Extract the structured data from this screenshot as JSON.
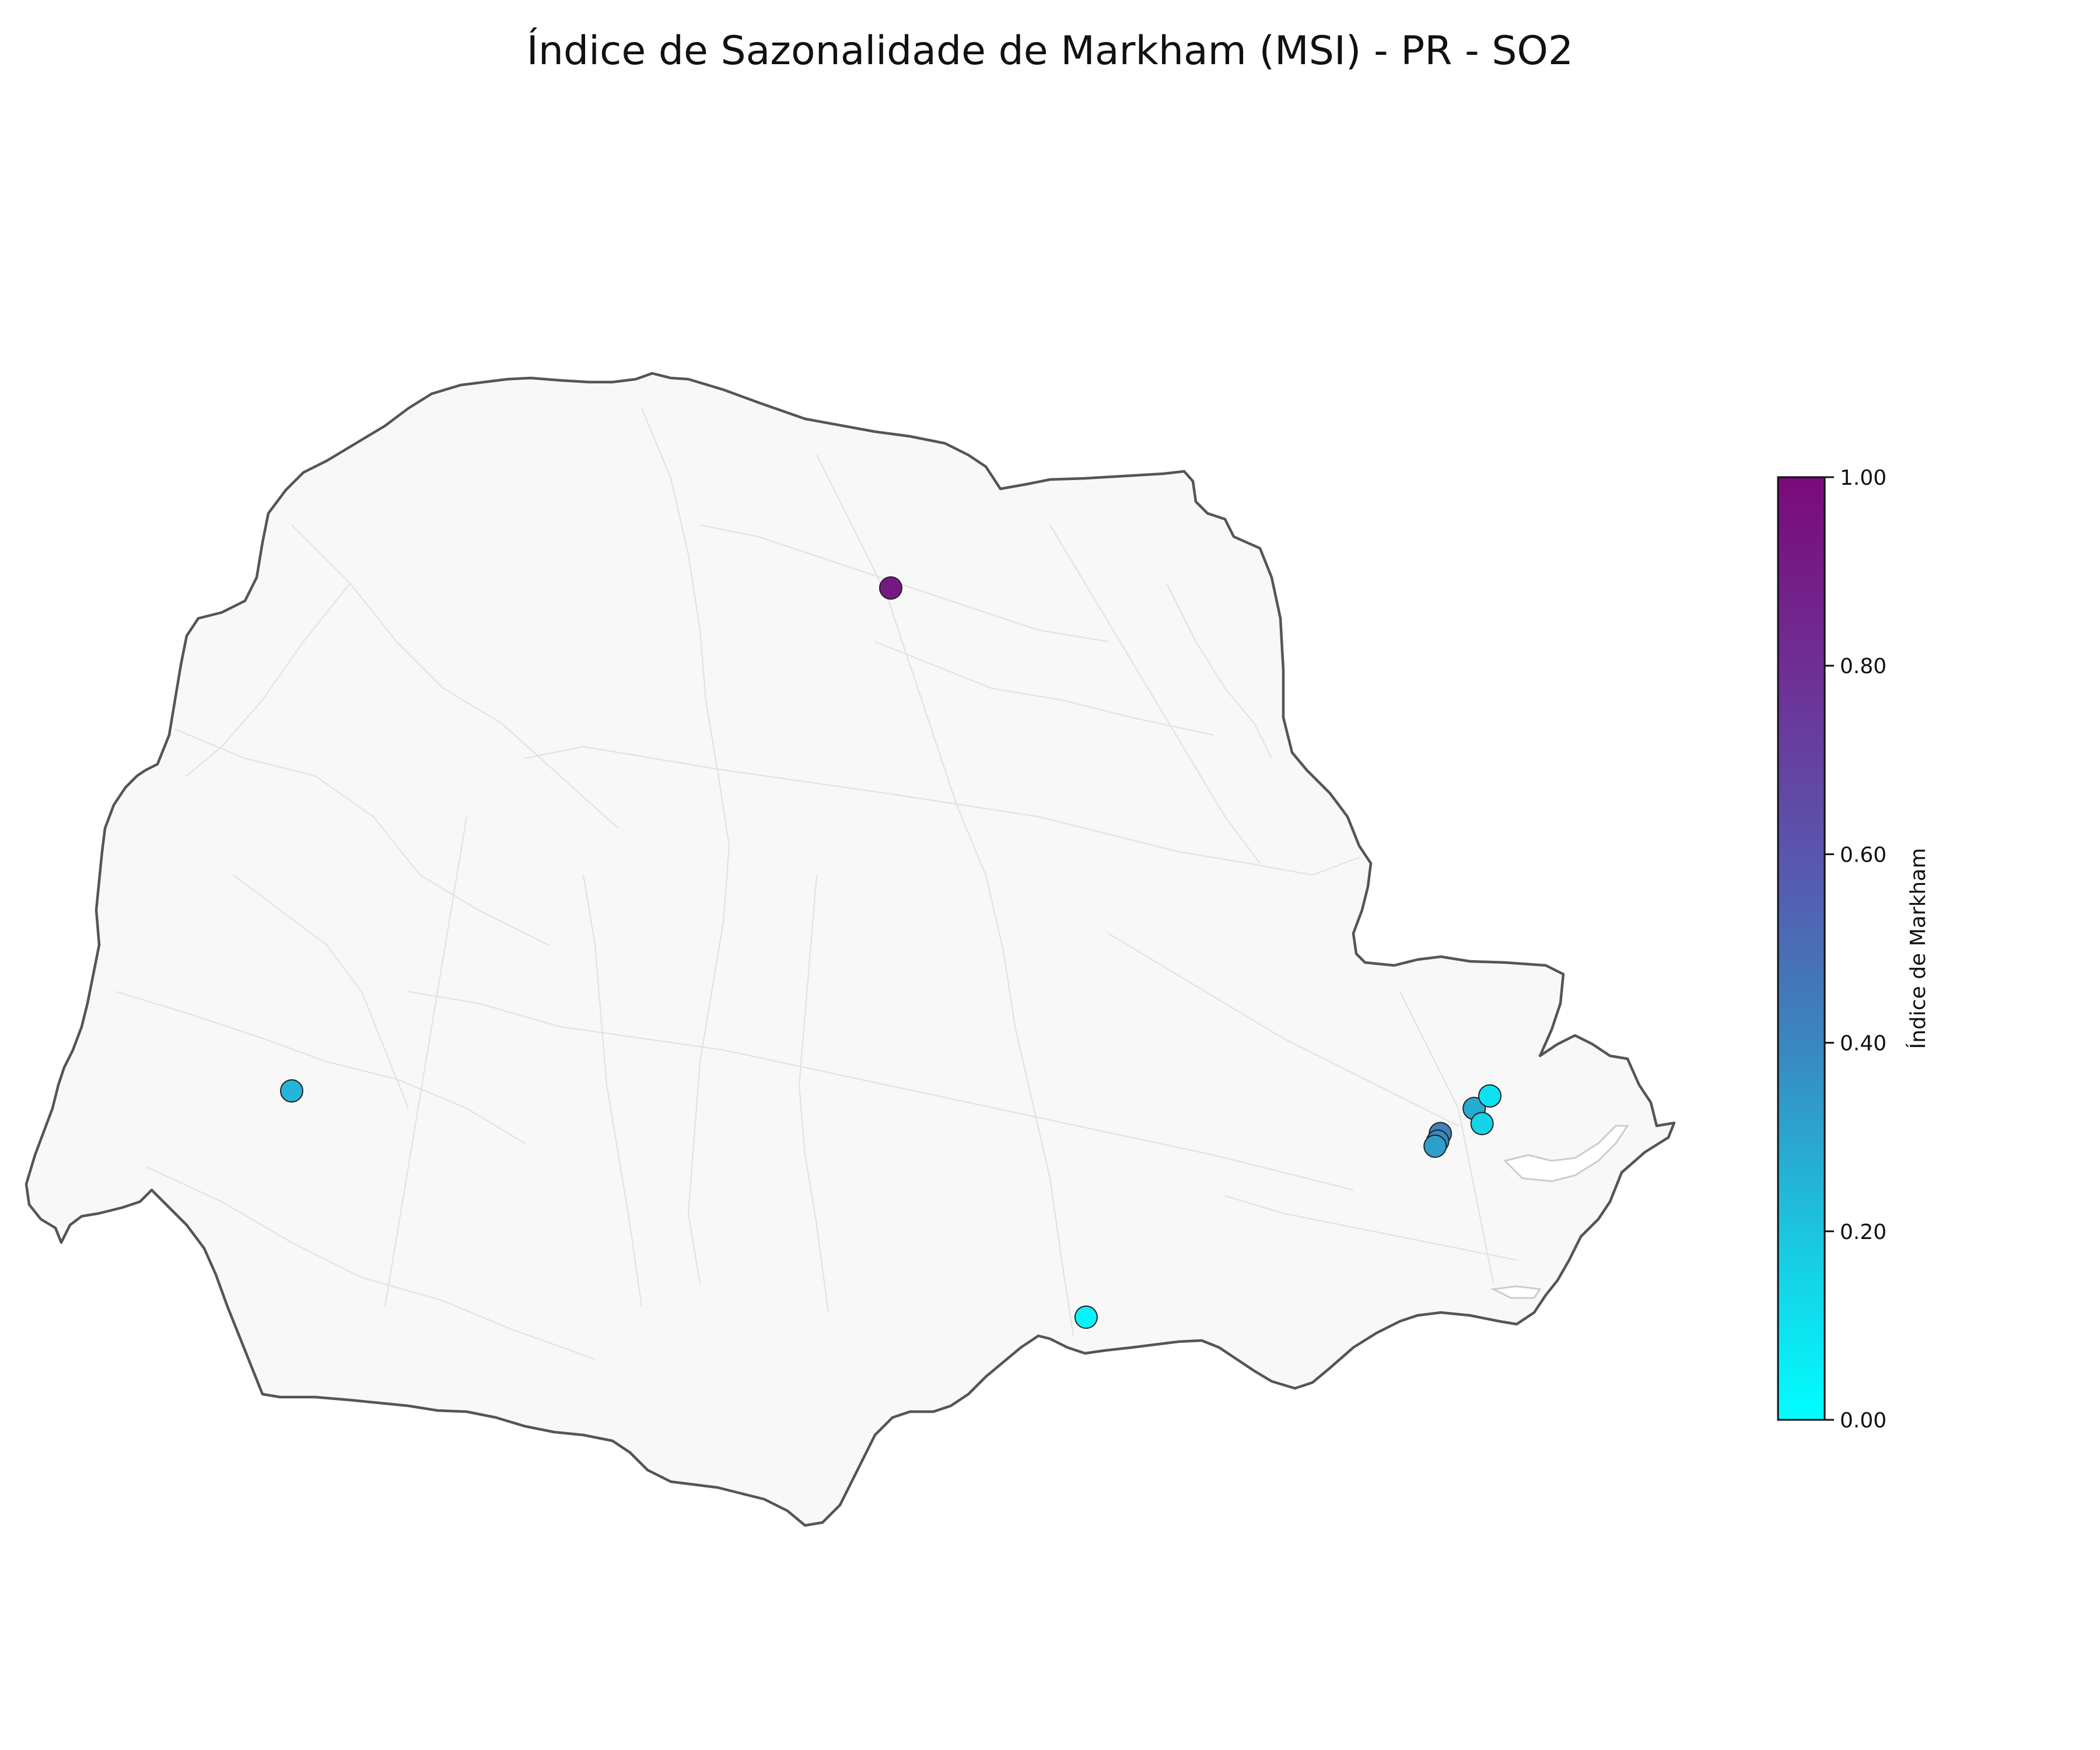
{
  "title": "Índice de Sazonalidade de Markham (MSI) - PR - SO2",
  "colorbar": {
    "label": "Índice de Markham",
    "min": 0.0,
    "max": 1.0,
    "ticks": [
      "0.00",
      "0.20",
      "0.40",
      "0.60",
      "0.80",
      "1.00"
    ],
    "colors": [
      "#00ffff",
      "#1cc4e0",
      "#3a86c0",
      "#5a55ad",
      "#6f2e94",
      "#7a0a7a"
    ]
  },
  "base_map": {
    "region": "Paraná (PR)",
    "fill_color": "#f8f8f8",
    "outline_color": "#555555",
    "municipality_line_color": "#e2e2e2"
  },
  "chart_data": {
    "type": "scatter",
    "title": "Índice de Sazonalidade de Markham (MSI) - PR - SO2",
    "color_variable": "Índice de Markham",
    "color_range": [
      0.0,
      1.0
    ],
    "stations": [
      {
        "lon": -51.55,
        "lat": -23.35,
        "msi": 0.92
      },
      {
        "lon": -53.85,
        "lat": -25.35,
        "msi": 0.25
      },
      {
        "lon": -50.8,
        "lat": -26.25,
        "msi": 0.04
      },
      {
        "lon": -49.44,
        "lat": -25.52,
        "msi": 0.42
      },
      {
        "lon": -49.45,
        "lat": -25.55,
        "msi": 0.38
      },
      {
        "lon": -49.46,
        "lat": -25.57,
        "msi": 0.32
      },
      {
        "lon": -49.31,
        "lat": -25.42,
        "msi": 0.28
      },
      {
        "lon": -49.28,
        "lat": -25.48,
        "msi": 0.15
      },
      {
        "lon": -49.25,
        "lat": -25.37,
        "msi": 0.1
      }
    ]
  }
}
